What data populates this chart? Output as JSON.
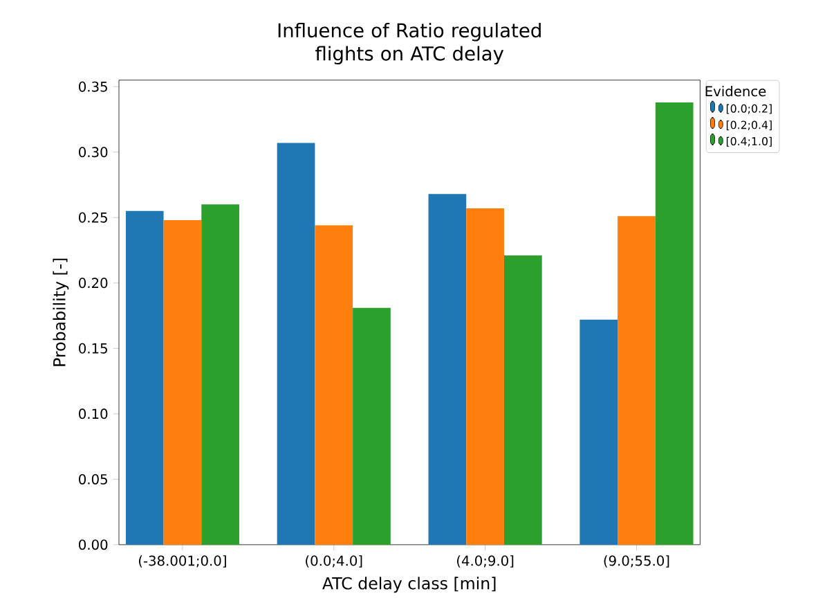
{
  "chart_data": {
    "type": "bar",
    "title": "Influence of Ratio regulated flights on ATC delay",
    "xlabel": "ATC delay class [min]",
    "ylabel": "Probability [-]",
    "legend_title": "Evidence",
    "categories": [
      "(-38.001;0.0]",
      "(0.0;4.0]",
      "(4.0;9.0]",
      "(9.0;55.0]"
    ],
    "series": [
      {
        "name": "[0.0;0.2]",
        "color": "#1f77b4",
        "values": [
          0.255,
          0.307,
          0.268,
          0.172
        ]
      },
      {
        "name": "[0.2;0.4]",
        "color": "#ff7f0e",
        "values": [
          0.248,
          0.244,
          0.257,
          0.251
        ]
      },
      {
        "name": "[0.4;1.0]",
        "color": "#2ca02c",
        "values": [
          0.26,
          0.181,
          0.221,
          0.338
        ]
      }
    ],
    "ylim": [
      0,
      0.355
    ],
    "yticks": [
      {
        "value": 0,
        "label": "0.00"
      },
      {
        "value": 0.05,
        "label": "0.05"
      },
      {
        "value": 0.1,
        "label": "0.10"
      },
      {
        "value": 0.15,
        "label": "0.15"
      },
      {
        "value": 0.2,
        "label": "0.20"
      },
      {
        "value": 0.25,
        "label": "0.25"
      },
      {
        "value": 0.3,
        "label": "0.30"
      },
      {
        "value": 0.35,
        "label": "0.35"
      }
    ],
    "legend": "right"
  }
}
